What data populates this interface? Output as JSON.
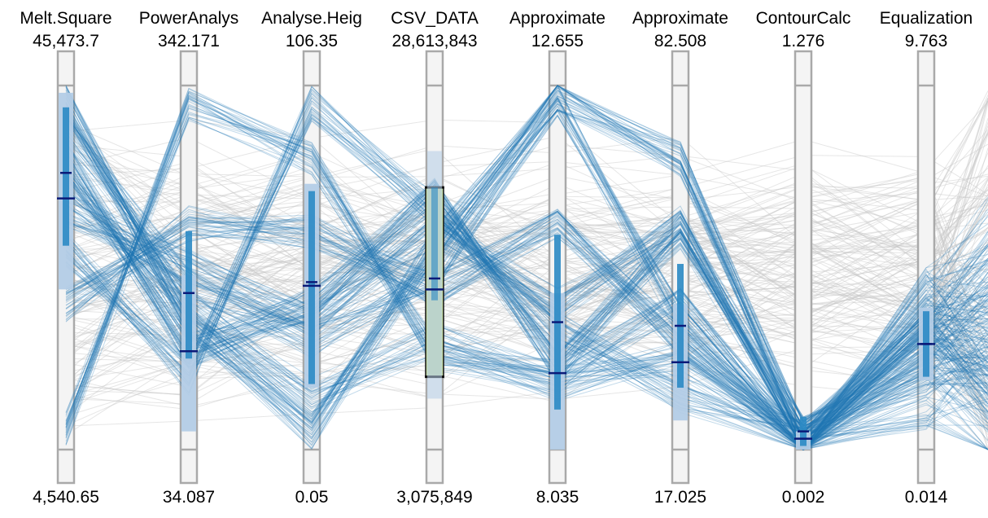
{
  "chart_data": {
    "type": "parallel-coordinates",
    "colors": {
      "selected_line": "#1f77b4",
      "background_line": "#c8c8c8",
      "axis_fill": "#f4f4f4",
      "axis_border": "#a9a9a9",
      "box_light": "#b3cce6",
      "box_dark": "#2b8ac4",
      "median_mark": "#0b1a78",
      "brush_fill": "#c5dcaa",
      "brush_border": "#111111"
    },
    "axes": [
      {
        "title": "Melt.Square",
        "max_label": "45,473.7",
        "min_label": "4,540.65",
        "full_box": [
          0.44,
          0.98
        ],
        "iqr_box": [
          0.56,
          0.94
        ],
        "median": 0.69,
        "mean": 0.76
      },
      {
        "title": "PowerAnalys",
        "max_label": "342.171",
        "min_label": "34.087",
        "full_box": [
          0.05,
          0.48
        ],
        "iqr_box": [
          0.25,
          0.6
        ],
        "median": 0.27,
        "mean": 0.43
      },
      {
        "title": "Analyse.Heig",
        "max_label": "106.35",
        "min_label": "0.05",
        "full_box": [
          0.17,
          0.73
        ],
        "iqr_box": [
          0.18,
          0.71
        ],
        "median": 0.45,
        "mean": 0.46
      },
      {
        "title": "CSV_DATA",
        "max_label": "28,613,843",
        "min_label": "3,075,849",
        "full_box": [
          0.14,
          0.82
        ],
        "iqr_box": [
          0.41,
          0.72
        ],
        "median": 0.44,
        "mean": 0.47,
        "brush": [
          0.2,
          0.72
        ]
      },
      {
        "title": "Approximate",
        "max_label": "12.655",
        "min_label": "8.035",
        "full_box": [
          0.0,
          0.43
        ],
        "iqr_box": [
          0.11,
          0.59
        ],
        "median": 0.21,
        "mean": 0.35
      },
      {
        "title": "Approximate",
        "max_label": "82.508",
        "min_label": "17.025",
        "full_box": [
          0.08,
          0.4
        ],
        "iqr_box": [
          0.17,
          0.51
        ],
        "median": 0.24,
        "mean": 0.34
      },
      {
        "title": "ContourCalc",
        "max_label": "1.276",
        "min_label": "0.002",
        "full_box": [
          0.0,
          0.05
        ],
        "iqr_box": [
          0.01,
          0.09
        ],
        "median": 0.03,
        "mean": 0.05
      },
      {
        "title": "Equalization",
        "max_label": "9.763",
        "min_label": "0.014",
        "full_box": [
          0.19,
          0.39
        ],
        "iqr_box": [
          0.2,
          0.38
        ],
        "median": 0.29,
        "mean": 0.29
      }
    ],
    "selected_groups": [
      {
        "count": 40,
        "spread": 0.05,
        "values": [
          0.96,
          0.35,
          0.05,
          0.56,
          0.98,
          0.8,
          0.03,
          0.3
        ]
      },
      {
        "count": 40,
        "spread": 0.05,
        "values": [
          0.8,
          0.27,
          0.4,
          0.7,
          0.22,
          0.6,
          0.04,
          0.2
        ]
      },
      {
        "count": 35,
        "spread": 0.05,
        "values": [
          0.4,
          0.62,
          0.6,
          0.44,
          0.62,
          0.3,
          0.02,
          0.38
        ]
      },
      {
        "count": 30,
        "spread": 0.05,
        "values": [
          0.06,
          0.95,
          0.8,
          0.26,
          0.18,
          0.25,
          0.02,
          0.35
        ]
      },
      {
        "count": 30,
        "spread": 0.05,
        "values": [
          0.55,
          0.2,
          0.95,
          0.66,
          0.33,
          0.15,
          0.03,
          0.33
        ]
      },
      {
        "count": 30,
        "spread": 0.05,
        "values": [
          0.66,
          0.5,
          0.35,
          0.6,
          0.4,
          0.62,
          0.0,
          0.45
        ]
      },
      {
        "count": 25,
        "spread": 0.05,
        "values": [
          0.72,
          0.4,
          0.15,
          0.3,
          0.2,
          0.4,
          0.03,
          0.1
        ]
      },
      {
        "count": 25,
        "spread": 0.05,
        "values": [
          0.88,
          0.45,
          0.3,
          0.48,
          0.96,
          0.35,
          0.0,
          0.25
        ]
      }
    ],
    "background_count": 140
  }
}
